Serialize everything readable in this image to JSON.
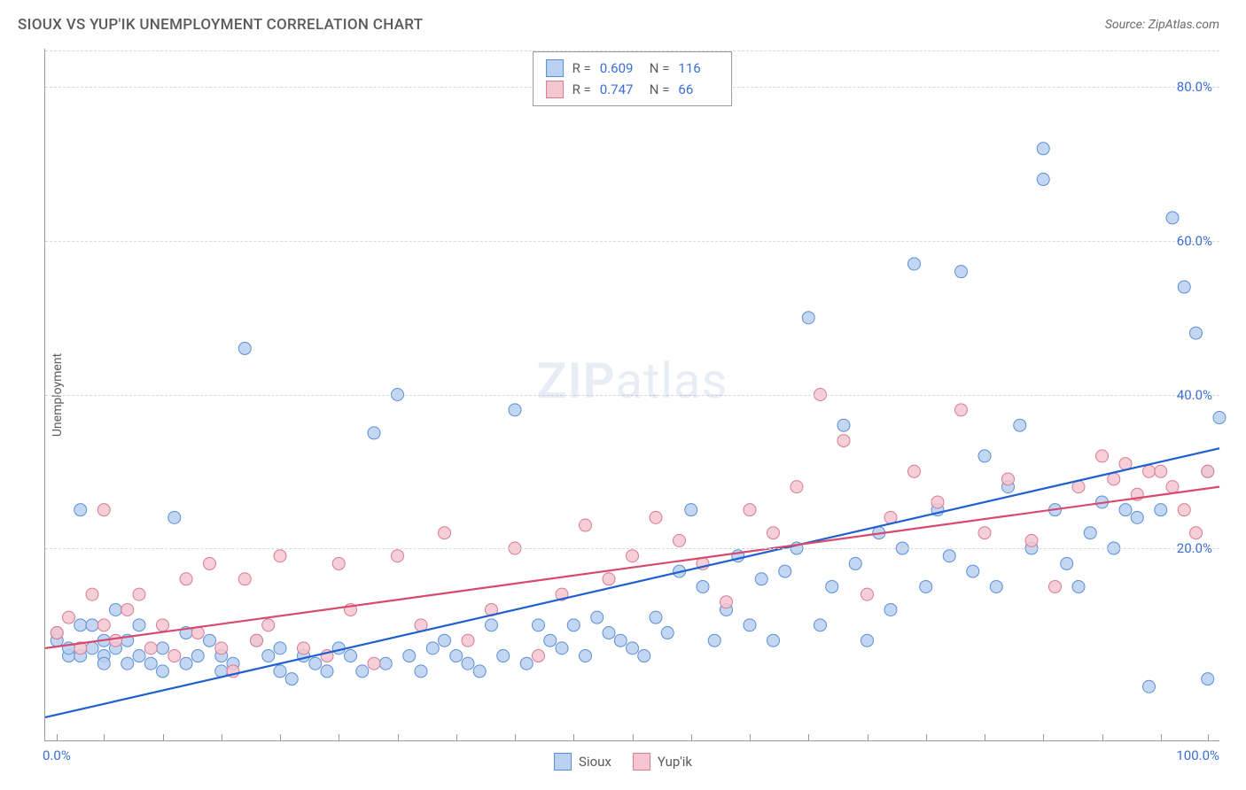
{
  "title": "SIOUX VS YUP'IK UNEMPLOYMENT CORRELATION CHART",
  "source": "Source: ZipAtlas.com",
  "watermark_zip": "ZIP",
  "watermark_atlas": "atlas",
  "ylabel": "Unemployment",
  "chart": {
    "type": "scatter",
    "xlim": [
      0,
      100
    ],
    "ylim": [
      -5,
      85
    ],
    "x_label_min": "0.0%",
    "x_label_max": "100.0%",
    "x_tick_positions": [
      1,
      5,
      10,
      15,
      20,
      25,
      30,
      35,
      40,
      45,
      50,
      55,
      60,
      65,
      70,
      75,
      80,
      85,
      90,
      95,
      99
    ],
    "y_ticks": [
      {
        "v": 20,
        "label": "20.0%"
      },
      {
        "v": 40,
        "label": "40.0%"
      },
      {
        "v": 60,
        "label": "60.0%"
      },
      {
        "v": 80,
        "label": "80.0%"
      }
    ],
    "background_color": "#ffffff",
    "grid_color": "#d8d8d8",
    "axis_color": "#9a9a9a",
    "tick_label_color": "#3a6fd8",
    "series": [
      {
        "name": "Sioux",
        "marker_fill": "#b9d0f0",
        "marker_stroke": "#5a8fd6",
        "marker_radius": 7,
        "marker_opacity": 0.85,
        "trend_color": "#1f5fd0",
        "trend_width": 2.2,
        "trend": {
          "x1": 0,
          "y1": -2,
          "x2": 100,
          "y2": 33
        },
        "R": "0.609",
        "N": "116",
        "points": [
          [
            1,
            8
          ],
          [
            1,
            9
          ],
          [
            2,
            6
          ],
          [
            2,
            7
          ],
          [
            3,
            10
          ],
          [
            3,
            6
          ],
          [
            3,
            25
          ],
          [
            4,
            7
          ],
          [
            4,
            10
          ],
          [
            5,
            6
          ],
          [
            5,
            8
          ],
          [
            5,
            5
          ],
          [
            6,
            7
          ],
          [
            6,
            12
          ],
          [
            7,
            5
          ],
          [
            7,
            8
          ],
          [
            8,
            6
          ],
          [
            8,
            10
          ],
          [
            9,
            5
          ],
          [
            10,
            7
          ],
          [
            10,
            4
          ],
          [
            11,
            24
          ],
          [
            12,
            5
          ],
          [
            12,
            9
          ],
          [
            13,
            6
          ],
          [
            14,
            8
          ],
          [
            15,
            6
          ],
          [
            15,
            4
          ],
          [
            16,
            5
          ],
          [
            17,
            46
          ],
          [
            18,
            8
          ],
          [
            19,
            6
          ],
          [
            20,
            4
          ],
          [
            20,
            7
          ],
          [
            21,
            3
          ],
          [
            22,
            6
          ],
          [
            23,
            5
          ],
          [
            24,
            4
          ],
          [
            25,
            7
          ],
          [
            26,
            6
          ],
          [
            27,
            4
          ],
          [
            28,
            35
          ],
          [
            29,
            5
          ],
          [
            30,
            40
          ],
          [
            31,
            6
          ],
          [
            32,
            4
          ],
          [
            33,
            7
          ],
          [
            34,
            8
          ],
          [
            35,
            6
          ],
          [
            36,
            5
          ],
          [
            37,
            4
          ],
          [
            38,
            10
          ],
          [
            39,
            6
          ],
          [
            40,
            38
          ],
          [
            41,
            5
          ],
          [
            42,
            10
          ],
          [
            43,
            8
          ],
          [
            44,
            7
          ],
          [
            45,
            10
          ],
          [
            46,
            6
          ],
          [
            47,
            11
          ],
          [
            48,
            9
          ],
          [
            49,
            8
          ],
          [
            50,
            7
          ],
          [
            51,
            6
          ],
          [
            52,
            11
          ],
          [
            53,
            9
          ],
          [
            54,
            17
          ],
          [
            55,
            25
          ],
          [
            56,
            15
          ],
          [
            57,
            8
          ],
          [
            58,
            12
          ],
          [
            59,
            19
          ],
          [
            60,
            10
          ],
          [
            61,
            16
          ],
          [
            62,
            8
          ],
          [
            63,
            17
          ],
          [
            64,
            20
          ],
          [
            65,
            50
          ],
          [
            66,
            10
          ],
          [
            67,
            15
          ],
          [
            68,
            36
          ],
          [
            69,
            18
          ],
          [
            70,
            8
          ],
          [
            71,
            22
          ],
          [
            72,
            12
          ],
          [
            73,
            20
          ],
          [
            74,
            57
          ],
          [
            75,
            15
          ],
          [
            76,
            25
          ],
          [
            77,
            19
          ],
          [
            78,
            56
          ],
          [
            79,
            17
          ],
          [
            80,
            32
          ],
          [
            81,
            15
          ],
          [
            82,
            28
          ],
          [
            83,
            36
          ],
          [
            84,
            20
          ],
          [
            85,
            72
          ],
          [
            85,
            68
          ],
          [
            86,
            25
          ],
          [
            87,
            18
          ],
          [
            88,
            15
          ],
          [
            89,
            22
          ],
          [
            90,
            26
          ],
          [
            91,
            20
          ],
          [
            92,
            25
          ],
          [
            93,
            24
          ],
          [
            94,
            2
          ],
          [
            95,
            25
          ],
          [
            96,
            63
          ],
          [
            97,
            54
          ],
          [
            98,
            48
          ],
          [
            99,
            3
          ],
          [
            99,
            30
          ],
          [
            100,
            37
          ]
        ]
      },
      {
        "name": "Yup'ik",
        "marker_fill": "#f4c6d0",
        "marker_stroke": "#d87a94",
        "marker_radius": 7,
        "marker_opacity": 0.85,
        "trend_color": "#d64a6e",
        "trend_width": 2.2,
        "trend": {
          "x1": 0,
          "y1": 7,
          "x2": 100,
          "y2": 28
        },
        "R": "0.747",
        "N": "66",
        "points": [
          [
            1,
            9
          ],
          [
            2,
            11
          ],
          [
            3,
            7
          ],
          [
            4,
            14
          ],
          [
            5,
            25
          ],
          [
            5,
            10
          ],
          [
            6,
            8
          ],
          [
            7,
            12
          ],
          [
            8,
            14
          ],
          [
            9,
            7
          ],
          [
            10,
            10
          ],
          [
            11,
            6
          ],
          [
            12,
            16
          ],
          [
            13,
            9
          ],
          [
            14,
            18
          ],
          [
            15,
            7
          ],
          [
            16,
            4
          ],
          [
            17,
            16
          ],
          [
            18,
            8
          ],
          [
            19,
            10
          ],
          [
            20,
            19
          ],
          [
            22,
            7
          ],
          [
            24,
            6
          ],
          [
            25,
            18
          ],
          [
            26,
            12
          ],
          [
            28,
            5
          ],
          [
            30,
            19
          ],
          [
            32,
            10
          ],
          [
            34,
            22
          ],
          [
            36,
            8
          ],
          [
            38,
            12
          ],
          [
            40,
            20
          ],
          [
            42,
            6
          ],
          [
            44,
            14
          ],
          [
            46,
            23
          ],
          [
            48,
            16
          ],
          [
            50,
            19
          ],
          [
            52,
            24
          ],
          [
            54,
            21
          ],
          [
            56,
            18
          ],
          [
            58,
            13
          ],
          [
            60,
            25
          ],
          [
            62,
            22
          ],
          [
            64,
            28
          ],
          [
            66,
            40
          ],
          [
            68,
            34
          ],
          [
            70,
            14
          ],
          [
            72,
            24
          ],
          [
            74,
            30
          ],
          [
            76,
            26
          ],
          [
            78,
            38
          ],
          [
            80,
            22
          ],
          [
            82,
            29
          ],
          [
            84,
            21
          ],
          [
            86,
            15
          ],
          [
            88,
            28
          ],
          [
            90,
            32
          ],
          [
            91,
            29
          ],
          [
            92,
            31
          ],
          [
            93,
            27
          ],
          [
            94,
            30
          ],
          [
            95,
            30
          ],
          [
            96,
            28
          ],
          [
            97,
            25
          ],
          [
            98,
            22
          ],
          [
            99,
            30
          ]
        ]
      }
    ]
  },
  "legend_bottom": [
    {
      "label": "Sioux",
      "fill": "#b9d0f0",
      "stroke": "#5a8fd6"
    },
    {
      "label": "Yup'ik",
      "fill": "#f4c6d0",
      "stroke": "#d87a94"
    }
  ]
}
